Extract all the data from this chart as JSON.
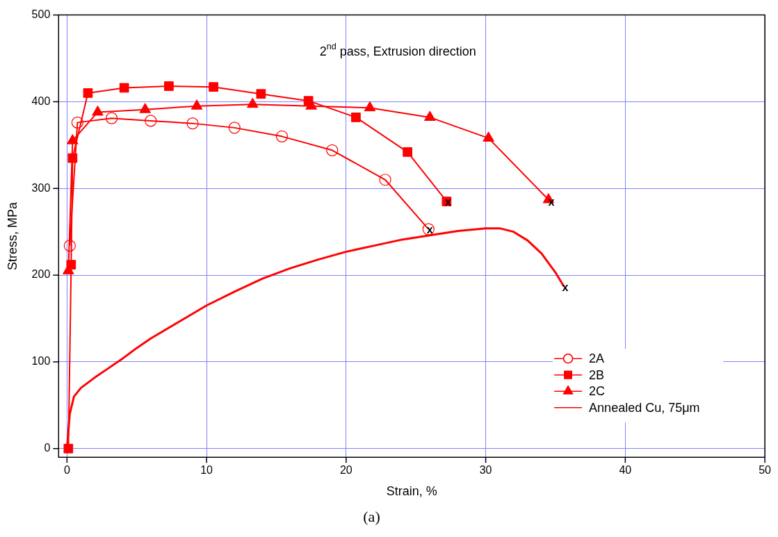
{
  "chart_data": {
    "type": "line",
    "title": "2$^{nd}$ pass, Extrusion direction",
    "xlabel": "Strain, %",
    "ylabel": "Stress, MPa",
    "xlim": [
      -0.6,
      50
    ],
    "ylim": [
      -10,
      500
    ],
    "xticks": [
      0,
      10,
      20,
      30,
      40,
      50
    ],
    "yticks": [
      0,
      100,
      200,
      300,
      400,
      500
    ],
    "grid": true,
    "legend": "bottom right",
    "line_style": "solid",
    "series": [
      {
        "name": "2A",
        "color": "#ff0000",
        "marker": "circle",
        "x": [
          0.2,
          0.75,
          3.2,
          6,
          9,
          12,
          15.4,
          19,
          22.8,
          25.9
        ],
        "values": [
          234,
          376,
          381,
          378,
          375,
          370,
          360,
          344,
          310,
          253
        ]
      },
      {
        "name": "2B",
        "color": "#ff0000",
        "marker": "square",
        "x": [
          0.1,
          0.3,
          0.4,
          1.5,
          4.1,
          7.3,
          10.5,
          13.9,
          17.3,
          20.7,
          24.4,
          27.2
        ],
        "values": [
          0,
          212,
          335,
          410,
          416,
          418,
          417,
          409,
          401,
          382,
          342,
          285
        ]
      },
      {
        "name": "2C",
        "color": "#ff0000",
        "marker": "triangle",
        "x": [
          0.1,
          0.4,
          2.2,
          5.6,
          9.3,
          13.3,
          17.5,
          21.7,
          26,
          30.2,
          34.5
        ],
        "values": [
          205,
          355,
          388,
          391,
          395,
          397,
          395,
          393,
          382,
          358,
          287
        ]
      },
      {
        "name": "Annealed Cu, 75μm",
        "color": "#ff0000",
        "marker": "none",
        "x": [
          0,
          0.2,
          0.5,
          1,
          2,
          3,
          4,
          5,
          6,
          8,
          10,
          12,
          14,
          16,
          18,
          20,
          22,
          24,
          26,
          28,
          30,
          31,
          32,
          33,
          34,
          35,
          35.6
        ],
        "values": [
          0,
          40,
          60,
          70,
          82,
          93,
          104,
          116,
          127,
          146,
          165,
          181,
          196,
          208,
          218,
          227,
          234,
          241,
          246,
          251,
          254,
          254,
          250,
          240,
          225,
          203,
          187
        ]
      }
    ],
    "annotations": [
      {
        "text": "x",
        "x": 25.9,
        "y": 253
      },
      {
        "text": "x",
        "x": 27.2,
        "y": 285
      },
      {
        "text": "x",
        "x": 34.6,
        "y": 285
      },
      {
        "text": "x",
        "x": 35.6,
        "y": 187
      },
      "(a)"
    ]
  }
}
